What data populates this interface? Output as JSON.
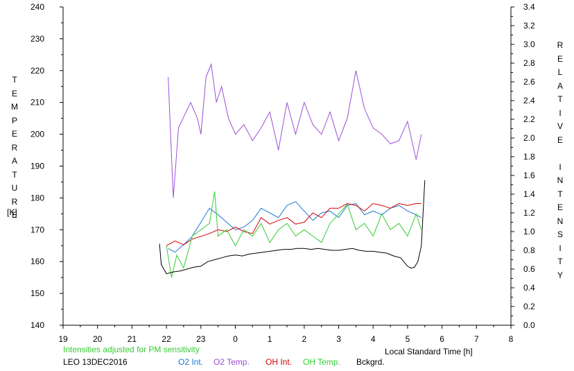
{
  "chart_data": {
    "type": "line",
    "title": "",
    "xlabel": "Local Standard Time [h]",
    "ylabel_left": "TEMPERATURE",
    "ylabel_left_unit": "[K]",
    "ylabel_right": "RELATIVE INTENSITY",
    "x_ticks": [
      "19",
      "20",
      "21",
      "22",
      "23",
      "0",
      "1",
      "2",
      "3",
      "4",
      "5",
      "6",
      "7",
      "8"
    ],
    "xlim": [
      19,
      32
    ],
    "y_left_ticks": [
      "140",
      "150",
      "160",
      "170",
      "180",
      "190",
      "200",
      "210",
      "220",
      "230",
      "240"
    ],
    "ylim_left": [
      140,
      240
    ],
    "y_right_ticks": [
      "0.0",
      "0.2",
      "0.4",
      "0.6",
      "0.8",
      "1.0",
      "1.2",
      "1.4",
      "1.6",
      "1.8",
      "2.0",
      "2.2",
      "2.4",
      "2.6",
      "2.8",
      "3.0",
      "3.2",
      "3.4"
    ],
    "ylim_right": [
      0,
      3.4
    ],
    "grid": false,
    "note": "Intensities adjusted for PM sensitivity",
    "station": "LEO 13DEC2016",
    "legend_position": "bottom",
    "series": [
      {
        "name": "O2 Int.",
        "color": "#1e78d2",
        "axis": "right",
        "x": [
          22.05,
          22.25,
          22.5,
          22.75,
          23.0,
          23.25,
          23.5,
          23.75,
          24.0,
          24.25,
          24.5,
          24.75,
          25.0,
          25.25,
          25.5,
          25.75,
          26.0,
          26.25,
          26.5,
          26.75,
          27.0,
          27.25,
          27.5,
          27.75,
          28.0,
          28.25,
          28.5,
          28.75,
          29.0,
          29.25,
          29.4
        ],
        "y": [
          0.82,
          0.78,
          0.86,
          0.95,
          1.1,
          1.25,
          1.18,
          1.1,
          1.02,
          1.05,
          1.12,
          1.25,
          1.2,
          1.15,
          1.28,
          1.32,
          1.22,
          1.12,
          1.2,
          1.22,
          1.15,
          1.28,
          1.3,
          1.18,
          1.22,
          1.18,
          1.25,
          1.28,
          1.22,
          1.18,
          1.15
        ]
      },
      {
        "name": "O2 Temp.",
        "color": "#9a4fd6",
        "axis": "left",
        "x": [
          22.05,
          22.2,
          22.35,
          22.7,
          22.9,
          23.0,
          23.15,
          23.3,
          23.45,
          23.6,
          23.8,
          24.0,
          24.25,
          24.5,
          24.75,
          25.0,
          25.25,
          25.5,
          25.75,
          26.0,
          26.25,
          26.5,
          26.75,
          27.0,
          27.25,
          27.5,
          27.75,
          28.0,
          28.25,
          28.5,
          28.75,
          29.0,
          29.25,
          29.4
        ],
        "y": [
          218,
          180,
          202,
          210,
          205,
          200,
          218,
          222,
          210,
          215,
          205,
          200,
          203,
          198,
          202,
          207,
          195,
          210,
          200,
          210,
          203,
          200,
          207,
          198,
          205,
          220,
          208,
          202,
          200,
          197,
          198,
          204,
          192,
          200
        ]
      },
      {
        "name": "OH Int.",
        "color": "#d40000",
        "axis": "right",
        "x": [
          22.0,
          22.25,
          22.5,
          22.75,
          23.0,
          23.25,
          23.5,
          23.75,
          24.0,
          24.25,
          24.5,
          24.75,
          25.0,
          25.25,
          25.5,
          25.75,
          26.0,
          26.25,
          26.5,
          26.75,
          27.0,
          27.25,
          27.5,
          27.75,
          28.0,
          28.25,
          28.5,
          28.75,
          29.0,
          29.25,
          29.4
        ],
        "y": [
          0.85,
          0.9,
          0.86,
          0.92,
          0.95,
          0.98,
          1.02,
          1.0,
          1.05,
          1.0,
          0.98,
          1.15,
          1.08,
          1.12,
          1.15,
          1.08,
          1.1,
          1.2,
          1.15,
          1.25,
          1.25,
          1.3,
          1.28,
          1.22,
          1.3,
          1.28,
          1.25,
          1.3,
          1.28,
          1.3,
          1.3
        ]
      },
      {
        "name": "OH Temp.",
        "color": "#33cc33",
        "axis": "left",
        "x": [
          22.0,
          22.15,
          22.3,
          22.5,
          22.75,
          23.0,
          23.25,
          23.4,
          23.5,
          23.75,
          24.0,
          24.25,
          24.5,
          24.75,
          25.0,
          25.25,
          25.5,
          25.75,
          26.0,
          26.25,
          26.5,
          26.75,
          27.0,
          27.25,
          27.5,
          27.75,
          28.0,
          28.25,
          28.5,
          28.75,
          29.0,
          29.25,
          29.4
        ],
        "y": [
          165,
          155,
          162,
          158,
          168,
          170,
          172,
          182,
          168,
          170,
          165,
          170,
          168,
          172,
          166,
          170,
          172,
          168,
          170,
          168,
          166,
          172,
          175,
          178,
          170,
          172,
          168,
          175,
          170,
          172,
          168,
          175,
          170
        ]
      },
      {
        "name": "Bckgrd.",
        "color": "#000000",
        "axis": "right",
        "x": [
          21.8,
          21.85,
          22.0,
          22.2,
          22.4,
          22.6,
          22.8,
          23.0,
          23.2,
          23.4,
          23.6,
          23.8,
          24.0,
          24.2,
          24.4,
          24.6,
          24.8,
          25.0,
          25.2,
          25.4,
          25.6,
          25.8,
          26.0,
          26.2,
          26.4,
          26.6,
          26.8,
          27.0,
          27.2,
          27.4,
          27.6,
          27.8,
          28.0,
          28.2,
          28.4,
          28.6,
          28.8,
          29.0,
          29.1,
          29.2,
          29.3,
          29.4,
          29.5
        ],
        "y": [
          0.87,
          0.65,
          0.55,
          0.57,
          0.58,
          0.6,
          0.62,
          0.63,
          0.68,
          0.7,
          0.72,
          0.74,
          0.75,
          0.74,
          0.76,
          0.77,
          0.78,
          0.79,
          0.8,
          0.81,
          0.81,
          0.82,
          0.82,
          0.81,
          0.82,
          0.81,
          0.8,
          0.8,
          0.81,
          0.82,
          0.8,
          0.79,
          0.79,
          0.78,
          0.77,
          0.74,
          0.72,
          0.63,
          0.61,
          0.62,
          0.68,
          0.85,
          1.55
        ]
      }
    ]
  }
}
